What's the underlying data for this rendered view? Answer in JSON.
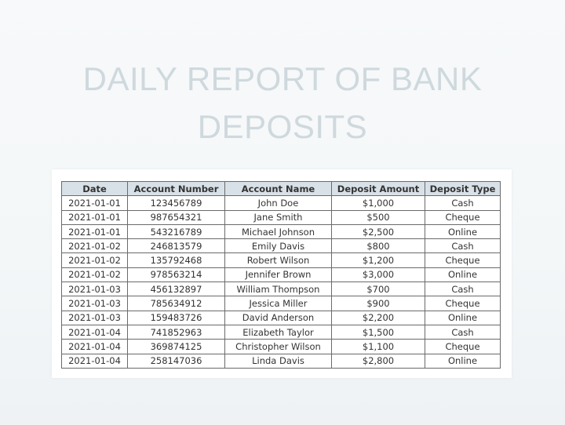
{
  "title": {
    "line1": "DAILY REPORT OF BANK",
    "line2": "DEPOSITS"
  },
  "table": {
    "headers": [
      "Date",
      "Account Number",
      "Account Name",
      "Deposit Amount",
      "Deposit Type"
    ],
    "rows": [
      [
        "2021-01-01",
        "123456789",
        "John Doe",
        "$1,000",
        "Cash"
      ],
      [
        "2021-01-01",
        "987654321",
        "Jane Smith",
        "$500",
        "Cheque"
      ],
      [
        "2021-01-01",
        "543216789",
        "Michael Johnson",
        "$2,500",
        "Online"
      ],
      [
        "2021-01-02",
        "246813579",
        "Emily Davis",
        "$800",
        "Cash"
      ],
      [
        "2021-01-02",
        "135792468",
        "Robert Wilson",
        "$1,200",
        "Cheque"
      ],
      [
        "2021-01-02",
        "978563214",
        "Jennifer Brown",
        "$3,000",
        "Online"
      ],
      [
        "2021-01-03",
        "456132897",
        "William Thompson",
        "$700",
        "Cash"
      ],
      [
        "2021-01-03",
        "785634912",
        "Jessica Miller",
        "$900",
        "Cheque"
      ],
      [
        "2021-01-03",
        "159483726",
        "David Anderson",
        "$2,200",
        "Online"
      ],
      [
        "2021-01-04",
        "741852963",
        "Elizabeth Taylor",
        "$1,500",
        "Cash"
      ],
      [
        "2021-01-04",
        "369874125",
        "Christopher Wilson",
        "$1,100",
        "Cheque"
      ],
      [
        "2021-01-04",
        "258147036",
        "Linda Davis",
        "$2,800",
        "Online"
      ]
    ]
  },
  "colors": {
    "title": "#cfd9dd",
    "header_bg": "#d9e1e8",
    "border": "#6a6a6a"
  }
}
